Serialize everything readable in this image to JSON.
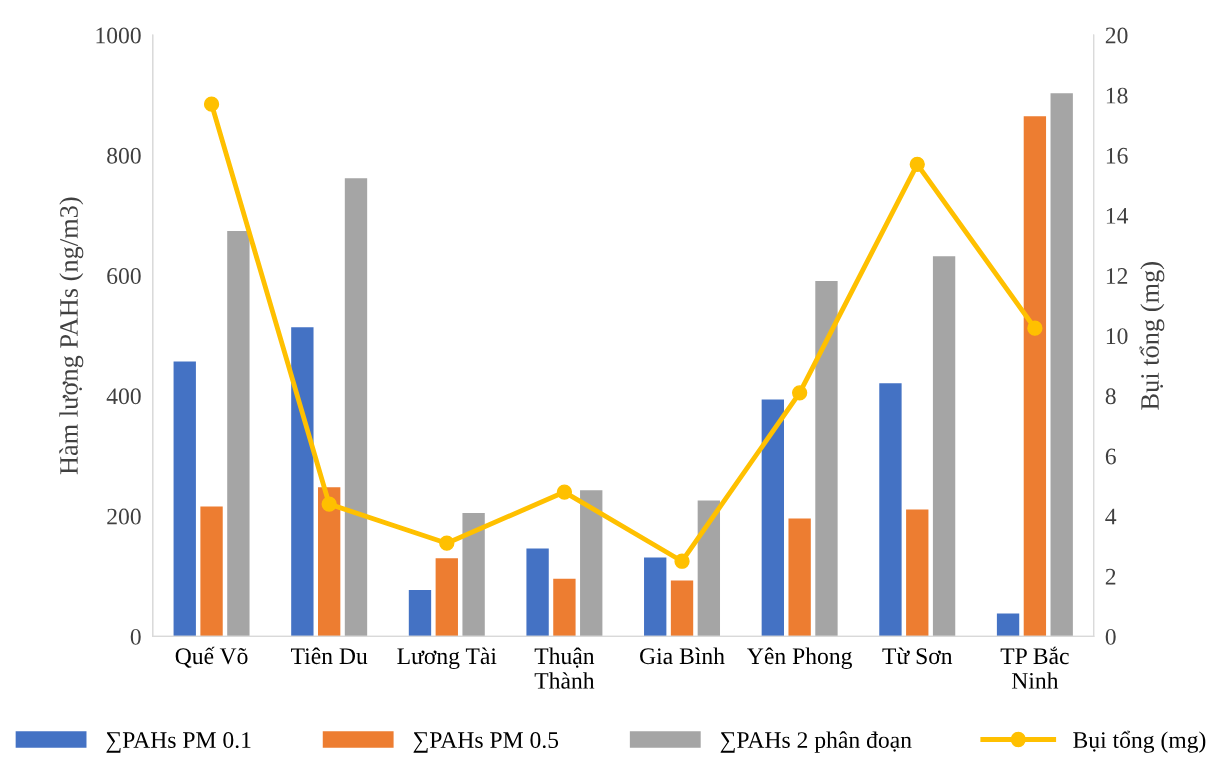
{
  "chart_data": {
    "type": "bar",
    "ylabel": "Hàm lượng PAHs (ng/m3)",
    "y2label": "Bụi tổng (mg)",
    "categories": [
      "Quế Võ",
      "Tiên Du",
      "Lương Tài",
      "Thuận\nThành",
      "Gia Bình",
      "Yên Phong",
      "Từ Sơn",
      "TP Bắc\nNinh"
    ],
    "series": [
      {
        "name": "∑PAHs PM 0.1",
        "color": "#4472c4",
        "values": [
          457,
          514,
          77,
          146,
          131,
          394,
          421,
          38
        ]
      },
      {
        "name": "∑PAHs PM 0.5",
        "color": "#ed7d31",
        "values": [
          216,
          248,
          130,
          96,
          93,
          196,
          211,
          865
        ]
      },
      {
        "name": "∑PAHs 2 phân đoạn",
        "color": "#a5a5a5",
        "values": [
          674,
          762,
          205,
          243,
          226,
          591,
          632,
          903
        ]
      },
      {
        "name": "Bụi tổng (mg)",
        "color": "#ffc000",
        "type": "line",
        "axis": "y2",
        "marker": "circle",
        "values": [
          17.7,
          4.4,
          3.1,
          4.8,
          2.5,
          8.1,
          15.7,
          10.25
        ]
      }
    ],
    "ylim": [
      0,
      1000
    ],
    "yticks": [
      0,
      200,
      400,
      600,
      800,
      1000
    ],
    "y2lim": [
      0,
      20
    ],
    "y2ticks": [
      0,
      2,
      4,
      6,
      8,
      10,
      12,
      14,
      16,
      18,
      20
    ],
    "grid": false,
    "legend": "bottom"
  }
}
